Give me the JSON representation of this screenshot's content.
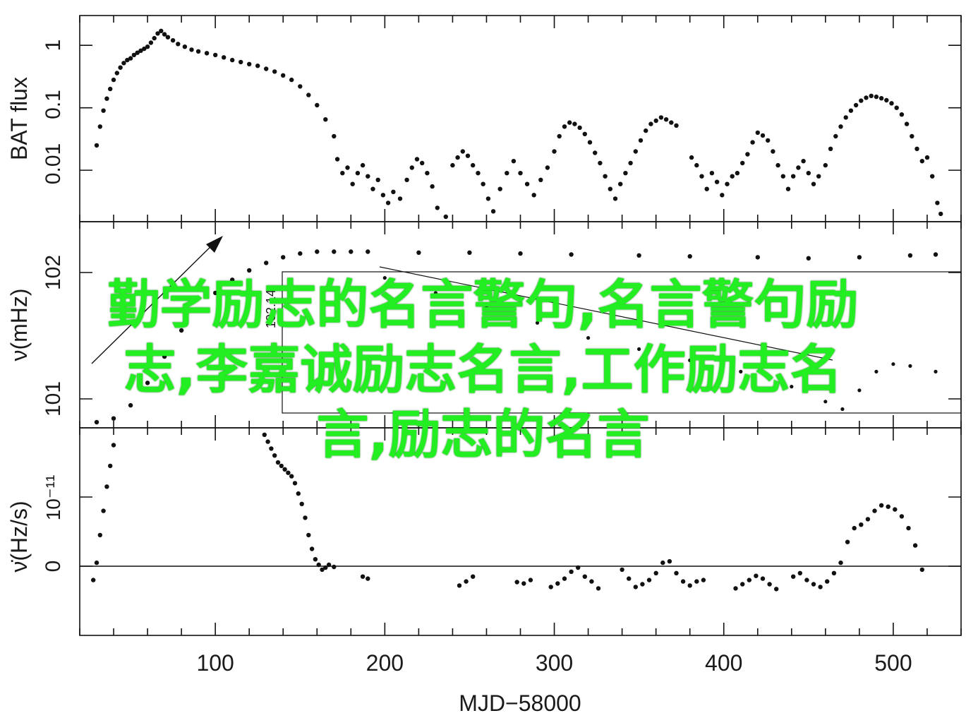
{
  "overlay_text": {
    "line1": "勤学励志的名言警句,名言警句励",
    "line2": "志,李嘉诚励志名言,工作励志名",
    "line3": "言,励志的名言"
  },
  "chart_data": {
    "type": "scatter",
    "xlabel": "MJD−58000",
    "x_ticks": [
      "100",
      "200",
      "300",
      "400",
      "500"
    ],
    "xlim": [
      20,
      540
    ],
    "panels": [
      {
        "ylabel": "BAT flux",
        "yscale": "log",
        "y_ticks": [
          "0.01",
          "0.1",
          "1"
        ],
        "ylim": [
          0.0015,
          3.0
        ],
        "points": [
          [
            30,
            0.025
          ],
          [
            32,
            0.05
          ],
          [
            34,
            0.09
          ],
          [
            36,
            0.14
          ],
          [
            38,
            0.2
          ],
          [
            40,
            0.28
          ],
          [
            42,
            0.36
          ],
          [
            44,
            0.44
          ],
          [
            46,
            0.52
          ],
          [
            48,
            0.58
          ],
          [
            50,
            0.62
          ],
          [
            52,
            0.7
          ],
          [
            54,
            0.76
          ],
          [
            56,
            0.82
          ],
          [
            58,
            0.88
          ],
          [
            60,
            0.95
          ],
          [
            62,
            1.1
          ],
          [
            64,
            1.3
          ],
          [
            66,
            1.55
          ],
          [
            68,
            1.7
          ],
          [
            70,
            1.5
          ],
          [
            72,
            1.35
          ],
          [
            75,
            1.2
          ],
          [
            78,
            1.05
          ],
          [
            82,
            0.95
          ],
          [
            86,
            0.85
          ],
          [
            90,
            0.8
          ],
          [
            95,
            0.75
          ],
          [
            100,
            0.7
          ],
          [
            105,
            0.64
          ],
          [
            110,
            0.58
          ],
          [
            115,
            0.54
          ],
          [
            120,
            0.5
          ],
          [
            125,
            0.47
          ],
          [
            130,
            0.42
          ],
          [
            135,
            0.38
          ],
          [
            140,
            0.33
          ],
          [
            145,
            0.28
          ],
          [
            150,
            0.22
          ],
          [
            155,
            0.16
          ],
          [
            160,
            0.11
          ],
          [
            165,
            0.065
          ],
          [
            170,
            0.035
          ],
          [
            172,
            0.015
          ],
          [
            175,
            0.009
          ],
          [
            178,
            0.011
          ],
          [
            181,
            0.006
          ],
          [
            184,
            0.009
          ],
          [
            187,
            0.012
          ],
          [
            190,
            0.008
          ],
          [
            193,
            0.005
          ],
          [
            196,
            0.007
          ],
          [
            199,
            0.004
          ],
          [
            202,
            0.003
          ],
          [
            205,
            0.0045
          ],
          [
            209,
            0.0035
          ],
          [
            213,
            0.007
          ],
          [
            216,
            0.011
          ],
          [
            219,
            0.015
          ],
          [
            222,
            0.013
          ],
          [
            225,
            0.009
          ],
          [
            228,
            0.0055
          ],
          [
            231,
            0.0025
          ],
          [
            236,
            0.0018
          ],
          [
            240,
            0.012
          ],
          [
            243,
            0.016
          ],
          [
            246,
            0.02
          ],
          [
            249,
            0.017
          ],
          [
            252,
            0.012
          ],
          [
            255,
            0.009
          ],
          [
            258,
            0.006
          ],
          [
            261,
            0.0035
          ],
          [
            264,
            0.0022
          ],
          [
            268,
            0.005
          ],
          [
            272,
            0.009
          ],
          [
            276,
            0.014
          ],
          [
            280,
            0.009
          ],
          [
            284,
            0.006
          ],
          [
            288,
            0.004
          ],
          [
            292,
            0.007
          ],
          [
            296,
            0.011
          ],
          [
            300,
            0.02
          ],
          [
            303,
            0.035
          ],
          [
            306,
            0.05
          ],
          [
            309,
            0.058
          ],
          [
            312,
            0.055
          ],
          [
            315,
            0.048
          ],
          [
            318,
            0.038
          ],
          [
            321,
            0.028
          ],
          [
            324,
            0.019
          ],
          [
            327,
            0.013
          ],
          [
            330,
            0.008
          ],
          [
            333,
            0.005
          ],
          [
            336,
            0.0035
          ],
          [
            339,
            0.006
          ],
          [
            342,
            0.009
          ],
          [
            345,
            0.013
          ],
          [
            348,
            0.02
          ],
          [
            351,
            0.03
          ],
          [
            354,
            0.043
          ],
          [
            357,
            0.055
          ],
          [
            360,
            0.062
          ],
          [
            363,
            0.07
          ],
          [
            366,
            0.065
          ],
          [
            369,
            0.058
          ],
          [
            372,
            0.052
          ],
          [
            381,
            0.016
          ],
          [
            384,
            0.012
          ],
          [
            387,
            0.008
          ],
          [
            390,
            0.005
          ],
          [
            393,
            0.009
          ],
          [
            396,
            0.0065
          ],
          [
            399,
            0.004
          ],
          [
            402,
            0.006
          ],
          [
            405,
            0.008
          ],
          [
            408,
            0.009
          ],
          [
            411,
            0.013
          ],
          [
            414,
            0.018
          ],
          [
            417,
            0.028
          ],
          [
            420,
            0.04
          ],
          [
            423,
            0.036
          ],
          [
            426,
            0.03
          ],
          [
            429,
            0.02
          ],
          [
            432,
            0.012
          ],
          [
            435,
            0.008
          ],
          [
            438,
            0.005
          ],
          [
            441,
            0.008
          ],
          [
            444,
            0.011
          ],
          [
            447,
            0.014
          ],
          [
            450,
            0.009
          ],
          [
            453,
            0.006
          ],
          [
            456,
            0.008
          ],
          [
            460,
            0.012
          ],
          [
            463,
            0.022
          ],
          [
            466,
            0.035
          ],
          [
            469,
            0.05
          ],
          [
            472,
            0.07
          ],
          [
            475,
            0.09
          ],
          [
            478,
            0.11
          ],
          [
            481,
            0.13
          ],
          [
            484,
            0.145
          ],
          [
            487,
            0.155
          ],
          [
            490,
            0.15
          ],
          [
            493,
            0.142
          ],
          [
            496,
            0.132
          ],
          [
            499,
            0.118
          ],
          [
            502,
            0.1
          ],
          [
            505,
            0.078
          ],
          [
            508,
            0.055
          ],
          [
            511,
            0.035
          ],
          [
            514,
            0.022
          ],
          [
            517,
            0.014
          ],
          [
            520,
            0.016
          ],
          [
            523,
            0.008
          ],
          [
            526,
            0.003
          ],
          [
            528,
            0.002
          ]
        ]
      },
      {
        "ylabel": "ν(mHz)",
        "y_ticks": [
          "102",
          "101"
        ],
        "ylim": [
          101.0,
          102.1
        ],
        "inset_label": "102.14",
        "points": [
          [
            30,
            101.03
          ],
          [
            40,
            101.05
          ],
          [
            50,
            101.12
          ],
          [
            60,
            101.24
          ],
          [
            70,
            101.38
          ],
          [
            80,
            101.52
          ],
          [
            90,
            101.63
          ],
          [
            100,
            101.72
          ],
          [
            110,
            101.79
          ],
          [
            120,
            101.84
          ],
          [
            130,
            101.88
          ],
          [
            140,
            101.91
          ],
          [
            150,
            101.93
          ],
          [
            160,
            101.94
          ],
          [
            170,
            101.94
          ],
          [
            180,
            101.94
          ],
          [
            190,
            101.94
          ],
          [
            220,
            101.935
          ],
          [
            250,
            101.935
          ],
          [
            280,
            101.93
          ],
          [
            310,
            101.925
          ],
          [
            350,
            101.92
          ],
          [
            380,
            101.915
          ],
          [
            420,
            101.91
          ],
          [
            450,
            101.905
          ],
          [
            480,
            101.91
          ],
          [
            510,
            101.92
          ],
          [
            525,
            101.925
          ]
        ],
        "inset_points": [
          [
            200,
            101.8
          ],
          [
            230,
            101.72
          ],
          [
            260,
            101.64
          ],
          [
            290,
            101.56
          ],
          [
            320,
            101.48
          ],
          [
            350,
            101.42
          ],
          [
            380,
            101.36
          ],
          [
            410,
            101.3
          ],
          [
            440,
            101.22
          ],
          [
            460,
            101.14
          ],
          [
            470,
            101.1
          ],
          [
            480,
            101.2
          ],
          [
            490,
            101.3
          ],
          [
            500,
            101.34
          ],
          [
            510,
            101.33
          ],
          [
            525,
            101.3
          ]
        ]
      },
      {
        "ylabel": "ν̇(Hz/s)",
        "y_ticks": [
          "0",
          "10⁻¹¹"
        ],
        "ylim": [
          -1.0,
          2.0
        ],
        "points": [
          [
            28,
            -0.2
          ],
          [
            30,
            0.05
          ],
          [
            32,
            0.45
          ],
          [
            34,
            0.8
          ],
          [
            36,
            1.15
          ],
          [
            38,
            1.45
          ],
          [
            40,
            1.75
          ],
          [
            129,
            1.9
          ],
          [
            131,
            1.8
          ],
          [
            133,
            1.7
          ],
          [
            135,
            1.6
          ],
          [
            137,
            1.5
          ],
          [
            139,
            1.45
          ],
          [
            141,
            1.4
          ],
          [
            143,
            1.35
          ],
          [
            145,
            1.3
          ],
          [
            147,
            1.2
          ],
          [
            149,
            1.05
          ],
          [
            151,
            0.9
          ],
          [
            153,
            0.7
          ],
          [
            155,
            0.45
          ],
          [
            157,
            0.25
          ],
          [
            159,
            0.1
          ],
          [
            161,
            0.02
          ],
          [
            163,
            -0.05
          ],
          [
            165,
            -0.02
          ],
          [
            167,
            0.02
          ],
          [
            170,
            -0.01
          ],
          [
            187,
            -0.15
          ],
          [
            190,
            -0.18
          ],
          [
            244,
            -0.28
          ],
          [
            248,
            -0.22
          ],
          [
            252,
            -0.15
          ],
          [
            278,
            -0.23
          ],
          [
            282,
            -0.25
          ],
          [
            286,
            -0.2
          ],
          [
            298,
            -0.3
          ],
          [
            302,
            -0.25
          ],
          [
            306,
            -0.18
          ],
          [
            310,
            -0.08
          ],
          [
            314,
            -0.02
          ],
          [
            318,
            -0.15
          ],
          [
            322,
            -0.22
          ],
          [
            326,
            -0.32
          ],
          [
            340,
            -0.05
          ],
          [
            344,
            -0.18
          ],
          [
            348,
            -0.3
          ],
          [
            352,
            -0.26
          ],
          [
            356,
            -0.2
          ],
          [
            360,
            -0.1
          ],
          [
            364,
            0.05
          ],
          [
            368,
            0.07
          ],
          [
            372,
            -0.1
          ],
          [
            376,
            -0.22
          ],
          [
            380,
            -0.28
          ],
          [
            384,
            -0.22
          ],
          [
            388,
            -0.2
          ],
          [
            407,
            -0.32
          ],
          [
            411,
            -0.26
          ],
          [
            415,
            -0.2
          ],
          [
            419,
            -0.14
          ],
          [
            423,
            -0.18
          ],
          [
            427,
            -0.26
          ],
          [
            431,
            -0.33
          ],
          [
            441,
            -0.15
          ],
          [
            445,
            -0.1
          ],
          [
            449,
            -0.2
          ],
          [
            453,
            -0.26
          ],
          [
            457,
            -0.3
          ],
          [
            461,
            -0.22
          ],
          [
            465,
            -0.1
          ],
          [
            469,
            0.05
          ],
          [
            473,
            0.35
          ],
          [
            477,
            0.55
          ],
          [
            481,
            0.6
          ],
          [
            485,
            0.68
          ],
          [
            489,
            0.8
          ],
          [
            493,
            0.88
          ],
          [
            497,
            0.86
          ],
          [
            501,
            0.82
          ],
          [
            505,
            0.72
          ],
          [
            509,
            0.55
          ],
          [
            513,
            0.3
          ],
          [
            517,
            -0.05
          ]
        ]
      }
    ]
  }
}
